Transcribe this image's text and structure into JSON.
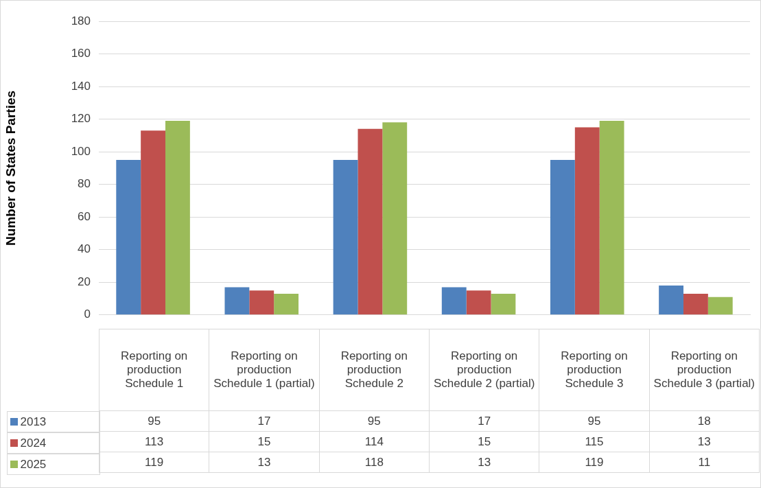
{
  "chart_data": {
    "type": "bar",
    "ylabel": "Number of States Parties",
    "categories": [
      "Reporting on production Schedule 1",
      "Reporting on production Schedule 1 (partial)",
      "Reporting on production Schedule 2",
      "Reporting on production Schedule 2 (partial)",
      "Reporting on production Schedule 3",
      "Reporting on production Schedule 3 (partial)"
    ],
    "series": [
      {
        "name": "2013",
        "color": "#4f81bd",
        "values": [
          95,
          17,
          95,
          17,
          95,
          18
        ]
      },
      {
        "name": "2024",
        "color": "#c0504d",
        "values": [
          113,
          15,
          114,
          15,
          115,
          13
        ]
      },
      {
        "name": "2025",
        "color": "#9bbb59",
        "values": [
          119,
          13,
          118,
          13,
          119,
          11
        ]
      }
    ],
    "ylim": [
      0,
      180
    ],
    "yticks": [
      0,
      20,
      40,
      60,
      80,
      100,
      120,
      140,
      160,
      180
    ],
    "grid": "y",
    "legend": "bottom",
    "data_labels": true
  }
}
